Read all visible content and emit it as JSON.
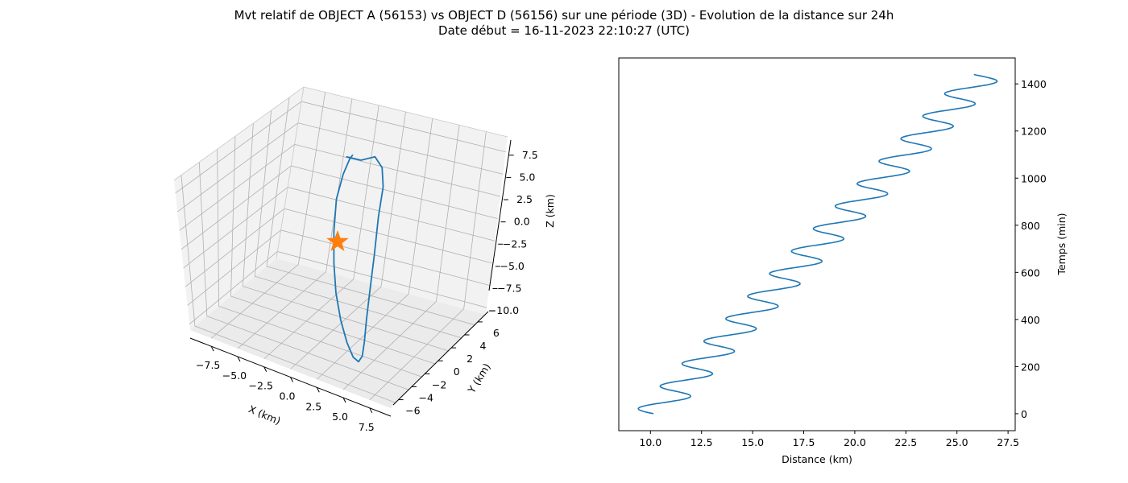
{
  "figure": {
    "title_line1": "Mvt relatif de OBJECT A (56153) vs OBJECT D (56156) sur une période (3D) - Evolution de la distance sur 24h",
    "title_line2": "Date début = 16-11-2023 22:10:27 (UTC)"
  },
  "colors": {
    "series": "#1f77b4",
    "marker": "#ff7f0e",
    "grid": "#b0b0b0",
    "pane": "#f2f2f2"
  },
  "chart_data": [
    {
      "type": "line",
      "projection": "3d",
      "xlabel": "X (km)",
      "ylabel": "Y (km)",
      "zlabel": "Z (km)",
      "xlim": [
        -9.5,
        9.5
      ],
      "ylim": [
        -6.8,
        7.6
      ],
      "zlim": [
        -10.8,
        9.2
      ],
      "xticks": [
        "−7.5",
        "−5.0",
        "−2.5",
        "0.0",
        "2.5",
        "5.0",
        "7.5"
      ],
      "yticks": [
        "−6",
        "−4",
        "−2",
        "0",
        "2",
        "4",
        "6"
      ],
      "zticks": [
        "7.5",
        "5.0",
        "2.5",
        "0.0",
        "−2.5",
        "−5.0",
        "−7.5",
        "−10.0"
      ],
      "series": [
        {
          "points": [
            [
              -1.6,
              2.8,
              7.4
            ],
            [
              -0.8,
              3.6,
              6.6
            ],
            [
              0.9,
              2.9,
              8.2
            ],
            [
              2.5,
              1.6,
              8.6
            ],
            [
              3.8,
              0.0,
              8.2
            ],
            [
              4.6,
              -1.6,
              6.3
            ],
            [
              5.3,
              -3.0,
              3.2
            ],
            [
              5.6,
              -3.9,
              0.0
            ],
            [
              5.7,
              -4.5,
              -3.4
            ],
            [
              5.6,
              -4.6,
              -6.2
            ],
            [
              5.3,
              -4.4,
              -8.3
            ],
            [
              4.6,
              -3.8,
              -9.8
            ],
            [
              3.5,
              -2.8,
              -10.5
            ],
            [
              2.2,
              -1.6,
              -10.2
            ],
            [
              0.8,
              -0.3,
              -9.0
            ],
            [
              -0.5,
              1.0,
              -7.2
            ],
            [
              -1.5,
              2.1,
              -4.8
            ],
            [
              -2.2,
              2.9,
              -1.8
            ],
            [
              -2.6,
              3.5,
              1.4
            ],
            [
              -2.4,
              3.8,
              4.2
            ],
            [
              -1.9,
              3.7,
              6.2
            ],
            [
              -1.3,
              3.2,
              7.4
            ]
          ]
        }
      ],
      "marker": {
        "symbol": "star",
        "point": [
          0,
          0,
          0
        ]
      }
    },
    {
      "type": "line",
      "xlabel": "Distance (km)",
      "ylabel": "Temps (min)",
      "xlim": [
        8.45,
        27.85
      ],
      "ylim": [
        -72,
        1510
      ],
      "xticks": [
        10.0,
        12.5,
        15.0,
        17.5,
        20.0,
        22.5,
        25.0,
        27.5
      ],
      "yticks": [
        0,
        200,
        400,
        600,
        800,
        1000,
        1200,
        1400
      ],
      "yaxis_position": "right",
      "series": [
        {
          "model": {
            "t_end": 1440,
            "d_start": 10.15,
            "d_end": 26.3,
            "amplitude": 1.0,
            "period_min": 95.5
          }
        }
      ]
    }
  ]
}
